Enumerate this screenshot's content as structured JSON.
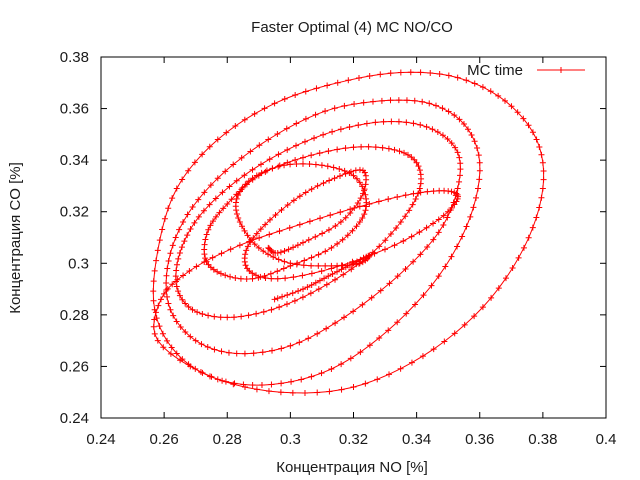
{
  "chart_data": {
    "type": "line",
    "title": "Faster Optimal (4) MC NO/CO",
    "xlabel": "Концентрация NO [%]",
    "ylabel": "Концентрация CO [%]",
    "xlim": [
      0.24,
      0.4
    ],
    "ylim": [
      0.24,
      0.38
    ],
    "x_ticks": [
      "0.24",
      "0.26",
      "0.28",
      "0.3",
      "0.32",
      "0.34",
      "0.36",
      "0.38",
      "0.4"
    ],
    "y_ticks": [
      "0.24",
      "0.26",
      "0.28",
      "0.3",
      "0.32",
      "0.34",
      "0.36",
      "0.38"
    ],
    "legend_position": "top-right",
    "grid": false,
    "series": [
      {
        "name": "MC time",
        "color": "#ff0000",
        "marker": "plus",
        "x": [
          0.295,
          0.304,
          0.312,
          0.32,
          0.325,
          0.322,
          0.313,
          0.3,
          0.29,
          0.284,
          0.283,
          0.288,
          0.298,
          0.31,
          0.32,
          0.324,
          0.322,
          0.313,
          0.3,
          0.288,
          0.278,
          0.273,
          0.274,
          0.28,
          0.29,
          0.304,
          0.32,
          0.333,
          0.34,
          0.341,
          0.335,
          0.324,
          0.309,
          0.294,
          0.28,
          0.269,
          0.264,
          0.265,
          0.271,
          0.283,
          0.299,
          0.316,
          0.332,
          0.345,
          0.353,
          0.353,
          0.347,
          0.334,
          0.317,
          0.3,
          0.283,
          0.27,
          0.262,
          0.261,
          0.266,
          0.277,
          0.293,
          0.311,
          0.329,
          0.344,
          0.355,
          0.36,
          0.357,
          0.347,
          0.331,
          0.313,
          0.294,
          0.277,
          0.264,
          0.257,
          0.258,
          0.264,
          0.277,
          0.295,
          0.315,
          0.335,
          0.353,
          0.368,
          0.378,
          0.38,
          0.374,
          0.361,
          0.342,
          0.32,
          0.297,
          0.275,
          0.258,
          0.259,
          0.268,
          0.284,
          0.303,
          0.322,
          0.339,
          0.35,
          0.353,
          0.347,
          0.333,
          0.313,
          0.296,
          0.287,
          0.286,
          0.292,
          0.303,
          0.314,
          0.323,
          0.323,
          0.316,
          0.304,
          0.296,
          0.293
        ],
        "y": [
          0.286,
          0.29,
          0.295,
          0.3,
          0.303,
          0.3,
          0.299,
          0.3,
          0.306,
          0.316,
          0.325,
          0.333,
          0.338,
          0.338,
          0.334,
          0.325,
          0.316,
          0.306,
          0.299,
          0.294,
          0.296,
          0.302,
          0.313,
          0.323,
          0.334,
          0.341,
          0.345,
          0.344,
          0.339,
          0.329,
          0.316,
          0.302,
          0.29,
          0.282,
          0.279,
          0.282,
          0.291,
          0.304,
          0.318,
          0.332,
          0.344,
          0.352,
          0.355,
          0.352,
          0.343,
          0.329,
          0.312,
          0.295,
          0.279,
          0.268,
          0.265,
          0.27,
          0.282,
          0.298,
          0.316,
          0.333,
          0.348,
          0.359,
          0.363,
          0.362,
          0.354,
          0.339,
          0.318,
          0.295,
          0.274,
          0.259,
          0.253,
          0.255,
          0.265,
          0.282,
          0.305,
          0.329,
          0.348,
          0.362,
          0.37,
          0.374,
          0.372,
          0.363,
          0.348,
          0.329,
          0.306,
          0.283,
          0.264,
          0.252,
          0.25,
          0.256,
          0.27,
          0.286,
          0.297,
          0.307,
          0.315,
          0.322,
          0.327,
          0.328,
          0.325,
          0.317,
          0.307,
          0.298,
          0.294,
          0.297,
          0.305,
          0.315,
          0.326,
          0.333,
          0.336,
          0.327,
          0.316,
          0.308,
          0.304,
          0.306
        ]
      }
    ]
  }
}
